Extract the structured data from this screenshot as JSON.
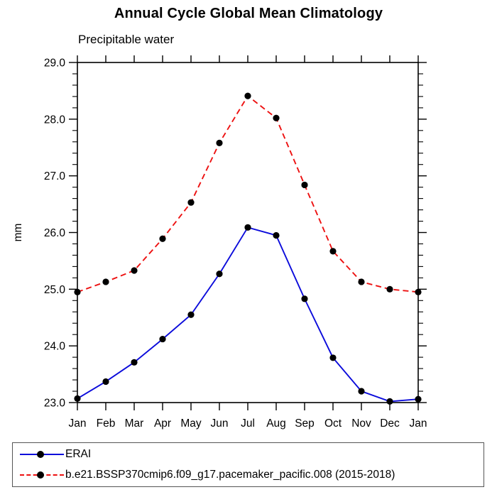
{
  "chart_data": {
    "type": "line",
    "title": "Annual Cycle Global Mean Climatology",
    "subtitle": "Precipitable water",
    "ylabel": "mm",
    "xlabel": "",
    "categories": [
      "Jan",
      "Feb",
      "Mar",
      "Apr",
      "May",
      "Jun",
      "Jul",
      "Aug",
      "Sep",
      "Oct",
      "Nov",
      "Dec",
      "Jan"
    ],
    "ylim": [
      23.0,
      29.0
    ],
    "ytick_major_step": 1.0,
    "ytick_minor_step": 0.2,
    "ytick_labels": [
      "23.0",
      "24.0",
      "25.0",
      "26.0",
      "27.0",
      "28.0",
      "29.0"
    ],
    "grid": false,
    "legend_position": "bottom",
    "axis_color": "#000000",
    "marker_color": "#000000",
    "series": [
      {
        "name": "ERAI",
        "color": "#0b0bdb",
        "line_style": "solid",
        "marker": "filled-circle",
        "values": [
          23.07,
          23.37,
          23.71,
          24.12,
          24.55,
          25.27,
          26.09,
          25.95,
          24.83,
          23.79,
          23.2,
          23.02,
          23.06
        ]
      },
      {
        "name": "b.e21.BSSP370cmip6.f09_g17.pacemaker_pacific.008 (2015-2018)",
        "color": "#ed1111",
        "line_style": "dashed",
        "marker": "filled-circle",
        "values": [
          24.95,
          25.13,
          25.33,
          25.89,
          26.53,
          27.58,
          28.41,
          28.02,
          26.84,
          25.67,
          25.13,
          25.0,
          24.95
        ]
      }
    ]
  }
}
